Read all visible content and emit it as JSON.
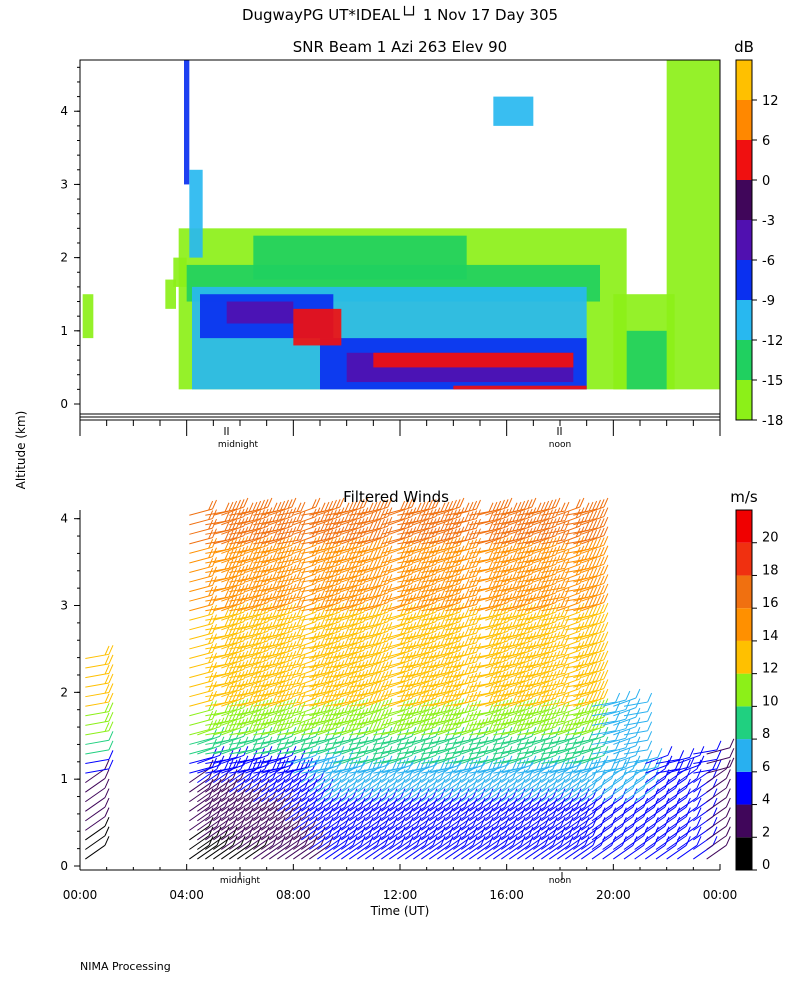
{
  "header": {
    "title": "DugwayPG UT*IDEAL└┘   1 Nov 17 Day 305"
  },
  "shared": {
    "ylabel": "Altitude (km)",
    "markers": {
      "midnight": "midnight",
      "noon": "noon"
    }
  },
  "footer": {
    "text": "NIMA Processing"
  },
  "chart_data": [
    {
      "type": "heatmap",
      "title": "SNR Beam 1 Azi 263 Elev 90",
      "ylabel": "Altitude (km)",
      "xlim": [
        0,
        24
      ],
      "ylim": [
        0,
        4.7
      ],
      "y_ticks": [
        0,
        1,
        2,
        3,
        4
      ],
      "x_ticks": [
        0,
        4,
        8,
        12,
        16,
        20,
        24
      ],
      "colorbar": {
        "unit": "dB",
        "boundaries": [
          -18,
          -15,
          -12,
          -9,
          -6,
          -3,
          0,
          6,
          12,
          16
        ],
        "tick_labels": [
          "-18",
          "-15",
          "-12",
          "-9",
          "-6",
          "-3",
          "0",
          "6",
          "12"
        ],
        "colors": [
          "#8cf018",
          "#20d060",
          "#28b8f0",
          "#0a30f0",
          "#5010b0",
          "#40065a",
          "#f01010",
          "#ff8800",
          "#ffc000"
        ]
      },
      "regions": [
        {
          "t0": 0.1,
          "t1": 0.5,
          "z0": 0.9,
          "z1": 1.5,
          "level": -17
        },
        {
          "t0": 3.2,
          "t1": 3.6,
          "z0": 1.3,
          "z1": 1.7,
          "level": -16
        },
        {
          "t0": 3.5,
          "t1": 4.0,
          "z0": 1.6,
          "z1": 2.0,
          "level": -17
        },
        {
          "t0": 3.7,
          "t1": 20.5,
          "z0": 0.2,
          "z1": 2.4,
          "level": -17
        },
        {
          "t0": 4.0,
          "t1": 19.5,
          "z0": 1.4,
          "z1": 1.9,
          "level": -13
        },
        {
          "t0": 6.5,
          "t1": 14.5,
          "z0": 1.7,
          "z1": 2.3,
          "level": -13
        },
        {
          "t0": 4.2,
          "t1": 19.0,
          "z0": 0.2,
          "z1": 1.6,
          "level": -10
        },
        {
          "t0": 4.5,
          "t1": 9.5,
          "z0": 0.9,
          "z1": 1.5,
          "level": -7
        },
        {
          "t0": 9.0,
          "t1": 19.0,
          "z0": 0.2,
          "z1": 0.9,
          "level": -7
        },
        {
          "t0": 5.5,
          "t1": 8.0,
          "z0": 1.1,
          "z1": 1.4,
          "level": -4
        },
        {
          "t0": 10.0,
          "t1": 18.5,
          "z0": 0.3,
          "z1": 0.7,
          "level": -4
        },
        {
          "t0": 8.0,
          "t1": 9.8,
          "z0": 0.8,
          "z1": 1.3,
          "level": 3
        },
        {
          "t0": 11.0,
          "t1": 18.5,
          "z0": 0.5,
          "z1": 0.7,
          "level": 3
        },
        {
          "t0": 14.0,
          "t1": 19.0,
          "z0": 0.2,
          "z1": 0.25,
          "level": 3
        },
        {
          "t0": 20.0,
          "t1": 22.3,
          "z0": 0.2,
          "z1": 1.5,
          "level": -16
        },
        {
          "t0": 22.0,
          "t1": 24.0,
          "z0": 0.2,
          "z1": 4.7,
          "level": -17
        },
        {
          "t0": 20.5,
          "t1": 22.0,
          "z0": 0.2,
          "z1": 1.0,
          "level": -13
        },
        {
          "t0": 3.9,
          "t1": 4.1,
          "z0": 3.0,
          "z1": 4.7,
          "level": -7
        },
        {
          "t0": 4.1,
          "t1": 4.6,
          "z0": 2.0,
          "z1": 3.2,
          "level": -10
        },
        {
          "t0": 15.5,
          "t1": 17.0,
          "z0": 3.8,
          "z1": 4.2,
          "level": -10
        }
      ]
    },
    {
      "type": "barbs",
      "title": "Filtered Winds",
      "xlabel": "Time (UT)",
      "ylabel": "Altitude (km)",
      "xlim": [
        0,
        24
      ],
      "ylim": [
        0,
        4.1
      ],
      "y_ticks": [
        0,
        1,
        2,
        3,
        4
      ],
      "x_ticks": [
        0,
        4,
        8,
        12,
        16,
        20,
        24
      ],
      "x_tick_labels": [
        "00:00",
        "04:00",
        "08:00",
        "12:00",
        "16:00",
        "20:00",
        "00:00"
      ],
      "colorbar": {
        "unit": "m/s",
        "boundaries": [
          0,
          2,
          4,
          6,
          8,
          10,
          12,
          14,
          16,
          18,
          20,
          22
        ],
        "tick_labels": [
          "0",
          "2",
          "4",
          "6",
          "8",
          "10",
          "12",
          "14",
          "16",
          "18",
          "20"
        ],
        "colors": [
          "#000000",
          "#40065a",
          "#0000ff",
          "#28b0f0",
          "#20d080",
          "#8cf018",
          "#ffc000",
          "#ff9000",
          "#f07010",
          "#f03010",
          "#f00000"
        ]
      },
      "profile_times": [
        0.2,
        4.1,
        4.4,
        4.7,
        5.0,
        5.3,
        5.6,
        5.9,
        6.2,
        6.5,
        6.8,
        7.1,
        7.4,
        7.7,
        8.0,
        8.3,
        8.6,
        8.9,
        9.2,
        9.5,
        9.8,
        10.1,
        10.4,
        10.7,
        11.0,
        11.3,
        11.6,
        11.9,
        12.2,
        12.5,
        12.8,
        13.1,
        13.4,
        13.7,
        14.0,
        14.3,
        14.6,
        14.9,
        15.2,
        15.5,
        15.8,
        16.1,
        16.4,
        16.7,
        17.0,
        17.3,
        17.6,
        17.9,
        18.2,
        18.5,
        18.8,
        19.2,
        19.6,
        20.0,
        20.4,
        20.8,
        21.2,
        21.6,
        22.0,
        22.4,
        23.0,
        23.5
      ],
      "speed_profile": [
        {
          "z": 0.0,
          "speed": 5
        },
        {
          "z": 0.4,
          "speed": 5
        },
        {
          "z": 0.9,
          "speed": 7
        },
        {
          "z": 1.3,
          "speed": 9
        },
        {
          "z": 1.8,
          "speed": 12
        },
        {
          "z": 2.5,
          "speed": 13
        },
        {
          "z": 3.2,
          "speed": 15
        },
        {
          "z": 4.1,
          "speed": 17
        }
      ],
      "early_morning_speed": [
        {
          "t": 4.0,
          "speed": 1
        },
        {
          "t": 7.0,
          "speed": 2
        },
        {
          "t": 9.0,
          "speed": 4
        },
        {
          "t": 11.0,
          "speed": 6
        }
      ]
    }
  ]
}
